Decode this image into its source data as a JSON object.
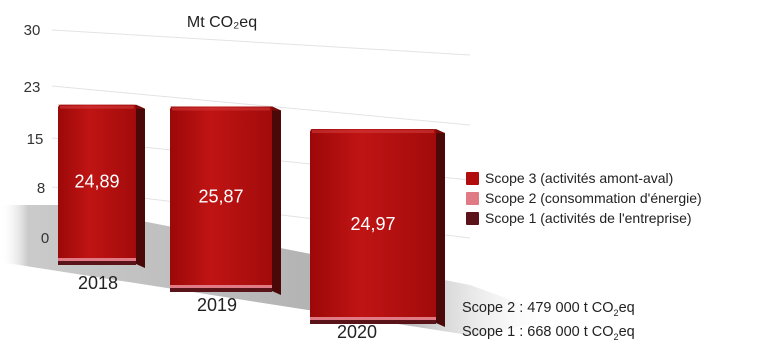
{
  "chart_data": {
    "type": "bar",
    "title": "Mt CO₂eq",
    "categories": [
      "2018",
      "2019",
      "2020"
    ],
    "y_ticks": [
      "30",
      "23",
      "15",
      "8",
      "0"
    ],
    "ylim": [
      0,
      30
    ],
    "series": [
      {
        "name": "Scope 3 (activités amont-aval)",
        "values": [
          24.89,
          25.87,
          24.97
        ],
        "color": "#b20d0d"
      },
      {
        "name": "Scope 2 (consommation d'énergie)",
        "values": [
          0.479,
          0.479,
          0.479
        ],
        "color": "#e07b86"
      },
      {
        "name": "Scope 1 (activités de l'entreprise)",
        "values": [
          0.668,
          0.668,
          0.668
        ],
        "color": "#5a1419"
      }
    ],
    "data_labels": [
      "24,89",
      "25,87",
      "24,97"
    ],
    "legend_position": "right",
    "annotations": [
      {
        "text": "Scope 2 : 479 000 t CO₂eq"
      },
      {
        "text": "Scope 1 : 668 000 t CO₂eq"
      }
    ]
  }
}
